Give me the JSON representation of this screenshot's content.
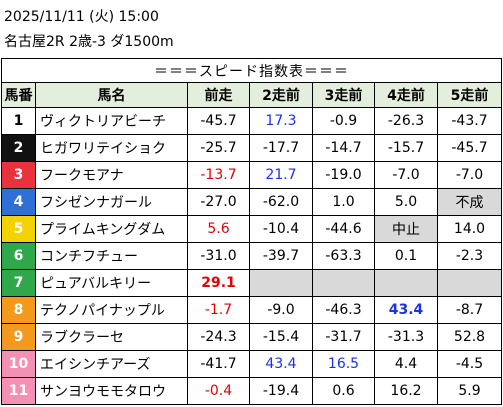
{
  "header": {
    "date": "2025/11/11 (火) 15:00",
    "race": "名古屋2R 2歳-3 ダ1500m"
  },
  "table": {
    "title": "＝＝＝スピード指数表＝＝＝",
    "columns": [
      "馬番",
      "馬名",
      "前走",
      "2走前",
      "3走前",
      "4走前",
      "5走前"
    ],
    "rows": [
      [
        "1",
        "ヴィクトリアビーチ",
        "-45.7",
        "17.3",
        "-0.9",
        "-26.3",
        "-43.7"
      ],
      [
        "2",
        "ヒガワリテイショク",
        "-25.7",
        "-17.7",
        "-14.7",
        "-15.7",
        "-45.7"
      ],
      [
        "3",
        "フークモアナ",
        "-13.7",
        "21.7",
        "-19.0",
        "-7.0",
        "-7.0"
      ],
      [
        "4",
        "フシゼンナガール",
        "-27.0",
        "-62.0",
        "1.0",
        "5.0",
        "不成"
      ],
      [
        "5",
        "プライムキングダム",
        "5.6",
        "-10.4",
        "-44.6",
        "中止",
        "14.0"
      ],
      [
        "6",
        "コンチフチュー",
        "-31.0",
        "-39.7",
        "-63.3",
        "0.1",
        "-2.3"
      ],
      [
        "7",
        "ピュアバルキリー",
        "29.1",
        null,
        null,
        null,
        null
      ],
      [
        "8",
        "テクノパイナップル",
        "-1.7",
        "-9.0",
        "-46.3",
        "43.4",
        "-8.7"
      ],
      [
        "9",
        "ラブクラーセ",
        "-24.3",
        "-15.4",
        "-31.7",
        "-31.3",
        "52.8"
      ],
      [
        "10",
        "エイシンチアーズ",
        "-41.7",
        "43.4",
        "16.5",
        "4.4",
        "-4.5"
      ],
      [
        "11",
        "サンヨウモモタロウ",
        "-0.4",
        "-19.4",
        "0.6",
        "16.2",
        "5.9"
      ]
    ]
  }
}
